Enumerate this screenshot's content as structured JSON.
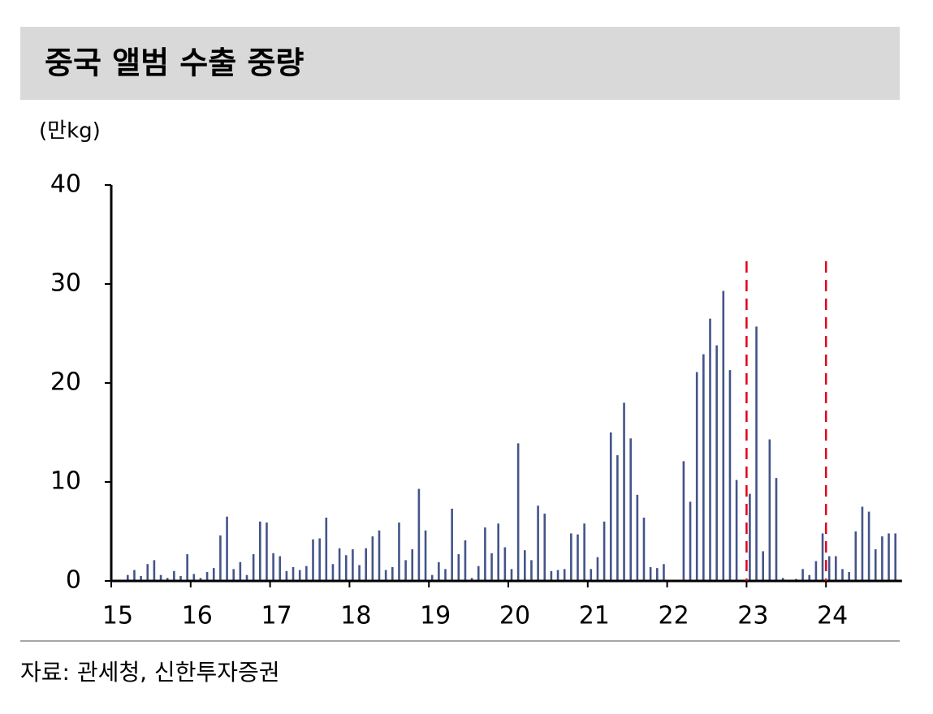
{
  "chart_data": {
    "type": "bar",
    "title": "중국 앨범 수출 중량",
    "y_label": "(만kg)",
    "source": "자료: 관세청, 신한투자증권",
    "categories": [
      "15",
      null,
      null,
      null,
      null,
      null,
      null,
      null,
      null,
      null,
      null,
      null,
      "16",
      null,
      null,
      null,
      null,
      null,
      null,
      null,
      null,
      null,
      null,
      null,
      "17",
      null,
      null,
      null,
      null,
      null,
      null,
      null,
      null,
      null,
      null,
      null,
      "18",
      null,
      null,
      null,
      null,
      null,
      null,
      null,
      null,
      null,
      null,
      null,
      "19",
      null,
      null,
      null,
      null,
      null,
      null,
      null,
      null,
      null,
      null,
      null,
      "20",
      null,
      null,
      null,
      null,
      null,
      null,
      null,
      null,
      null,
      null,
      null,
      "21",
      null,
      null,
      null,
      null,
      null,
      null,
      null,
      null,
      null,
      null,
      null,
      "22",
      null,
      null,
      null,
      null,
      null,
      null,
      null,
      null,
      null,
      null,
      null,
      "23",
      null,
      null,
      null,
      null,
      null,
      null,
      null,
      null,
      null,
      null,
      null,
      "24",
      null,
      null,
      null,
      null,
      null,
      null,
      null,
      null,
      null,
      null
    ],
    "values": [
      0,
      0,
      0.6,
      1.1,
      0.5,
      1.7,
      2.1,
      0.6,
      0.3,
      1.0,
      0.5,
      2.7,
      0.7,
      0.3,
      0.9,
      1.3,
      4.6,
      6.5,
      1.2,
      1.9,
      0.6,
      2.7,
      6.0,
      5.9,
      2.8,
      2.5,
      1.0,
      1.4,
      1.1,
      1.5,
      4.2,
      4.3,
      6.4,
      1.7,
      3.3,
      2.6,
      3.2,
      1.6,
      3.3,
      4.5,
      5.1,
      1.1,
      1.4,
      5.9,
      2.1,
      3.2,
      9.3,
      5.1,
      0.6,
      1.9,
      1.2,
      7.3,
      2.7,
      4.1,
      0.3,
      1.5,
      5.4,
      2.8,
      5.8,
      3.4,
      1.2,
      13.9,
      3.1,
      2.1,
      7.6,
      6.8,
      1.0,
      1.1,
      1.2,
      4.8,
      4.7,
      5.8,
      1.2,
      2.4,
      6.0,
      15.0,
      12.7,
      18.0,
      14.4,
      8.7,
      6.4,
      1.4,
      1.3,
      1.7,
      0,
      0,
      12.1,
      8.0,
      21.1,
      22.9,
      26.5,
      23.8,
      29.3,
      21.3,
      10.2,
      0,
      8.8,
      25.7,
      3.0,
      14.3,
      10.4,
      0.3,
      0,
      0.2,
      1.2,
      0.6,
      2.0,
      4.8,
      2.5,
      2.5,
      1.2,
      0.9,
      5.0,
      7.5,
      7.0,
      3.2,
      4.5,
      4.8,
      4.8
    ],
    "color": "#44548a",
    "ylim": [
      0,
      40
    ],
    "yticks": [
      0,
      10,
      20,
      30,
      40
    ],
    "grid": false,
    "reference_lines": [
      "23",
      "24"
    ],
    "reference_color": "#e0001b"
  }
}
